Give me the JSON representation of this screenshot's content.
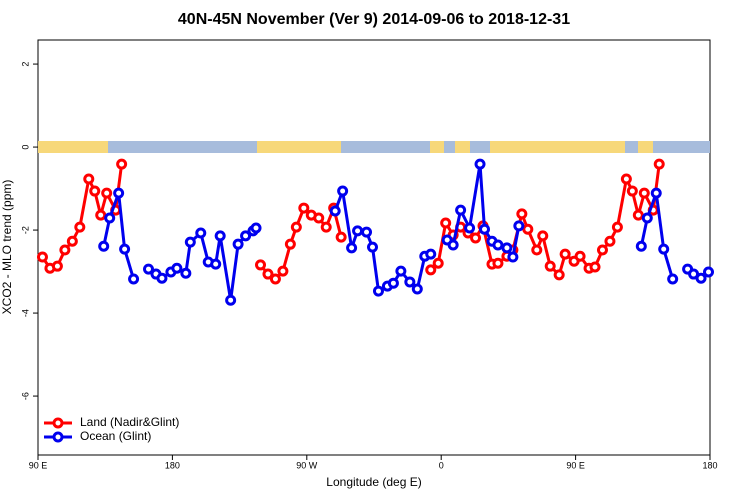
{
  "chart_data": {
    "type": "line",
    "title": "40N-45N November (Ver 9)   2014-09-06 to 2018-12-31",
    "x_label": "Longitude (deg E)",
    "y_label": "XCO2 - MLO trend (ppm)",
    "xlim": [
      90,
      540
    ],
    "ylim": [
      -7.42,
      2.58
    ],
    "xticks": [
      {
        "value": 90,
        "label": "90 E"
      },
      180,
      {
        "value": 270,
        "label": "90 W"
      },
      {
        "value": 360,
        "label": "0"
      },
      {
        "value": 450,
        "label": "90 E"
      },
      {
        "value": 540,
        "label": "180"
      }
    ],
    "yticks": [
      2,
      0,
      -2,
      -4,
      -6
    ],
    "legend": "bottom-left",
    "series": [
      {
        "name": "Land (Nadir&Glint)",
        "color": "#ff0000",
        "x": [
          93,
          98,
          103,
          108,
          113,
          118,
          124,
          128,
          132,
          136,
          142,
          146,
          150,
          239,
          244,
          249,
          254,
          259,
          263,
          268,
          273,
          278,
          283,
          288,
          293,
          300,
          353,
          358,
          363,
          368,
          373,
          378,
          383,
          388,
          394,
          398,
          404,
          408,
          414,
          418,
          424,
          428,
          433,
          439,
          443,
          449,
          453,
          459,
          463,
          468,
          473,
          478,
          484,
          488,
          492,
          496,
          502,
          506
        ],
        "values": [
          -2.65,
          -2.92,
          -2.87,
          -2.48,
          -2.27,
          -1.93,
          -0.77,
          -1.06,
          -1.64,
          -1.11,
          -1.52,
          -0.41,
          null,
          -2.84,
          -3.06,
          -3.18,
          -2.99,
          -2.34,
          -1.93,
          -1.47,
          -1.64,
          -1.71,
          -1.93,
          -1.47,
          -2.17,
          null,
          -2.96,
          -2.8,
          -1.83,
          -2.12,
          -1.93,
          -2.07,
          -2.19,
          -1.9,
          -2.82,
          -2.8,
          -2.63,
          -2.48,
          -1.61,
          -1.98,
          -2.48,
          -2.14,
          -2.87,
          -3.08,
          -2.58,
          -2.75,
          -2.63,
          -2.92,
          -2.89,
          -2.48,
          -2.27,
          -1.93,
          -0.77,
          -1.06,
          -1.64,
          -1.11,
          -1.52,
          -0.41
        ]
      },
      {
        "name": "Ocean (Glint)",
        "color": "#0000ee",
        "x": [
          134,
          138,
          144,
          148,
          154,
          157,
          164,
          169,
          173,
          179,
          183,
          189,
          192,
          199,
          204,
          209,
          212,
          219,
          224,
          229,
          234,
          236,
          260,
          289,
          294,
          300,
          304,
          310,
          314,
          318,
          324,
          328,
          333,
          339,
          344,
          349,
          353,
          356,
          364,
          368,
          373,
          379,
          386,
          389,
          394,
          398,
          404,
          408,
          412,
          440,
          494,
          498,
          504,
          509,
          515,
          518,
          525,
          529,
          534,
          539
        ],
        "values": [
          -2.39,
          -1.71,
          -1.11,
          -2.46,
          -3.18,
          null,
          -2.94,
          -3.06,
          -3.16,
          -3.01,
          -2.92,
          -3.04,
          -2.29,
          -2.07,
          -2.77,
          -2.82,
          -2.14,
          -3.69,
          -2.34,
          -2.14,
          -2.02,
          -1.95,
          null,
          -1.54,
          -1.06,
          -2.43,
          -2.02,
          -2.05,
          -2.41,
          -3.47,
          -3.35,
          -3.28,
          -2.99,
          -3.25,
          -3.42,
          -2.63,
          -2.58,
          null,
          -2.24,
          -2.36,
          -1.52,
          -1.95,
          -0.41,
          -1.98,
          -2.27,
          -2.36,
          -2.43,
          -2.65,
          -1.9,
          null,
          -2.39,
          -1.71,
          -1.11,
          -2.46,
          -3.18,
          null,
          -2.94,
          -3.06,
          -3.16,
          -3.01
        ]
      }
    ]
  }
}
